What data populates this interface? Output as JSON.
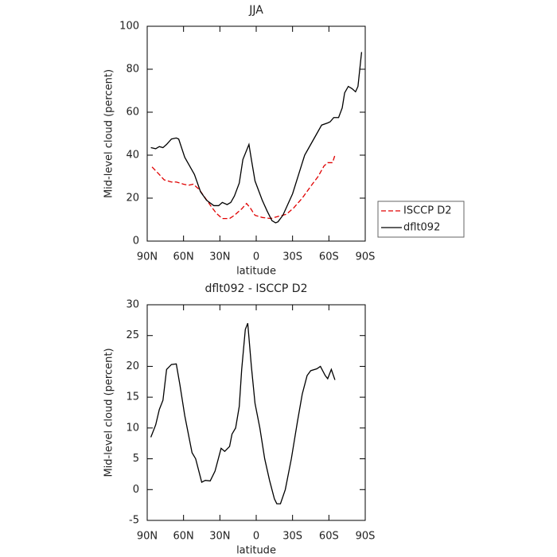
{
  "chart_data": [
    {
      "type": "line",
      "title": "JJA",
      "ylabel": "Mid-level cloud (percent)",
      "xlabel": "latitude",
      "xlim": [
        90,
        -90
      ],
      "ylim": [
        0,
        100
      ],
      "xticks": [
        {
          "value": 90,
          "label": "90N"
        },
        {
          "value": 60,
          "label": "60N"
        },
        {
          "value": 30,
          "label": "30N"
        },
        0,
        {
          "value": -30,
          "label": "30S"
        },
        {
          "value": -60,
          "label": "60S"
        },
        {
          "value": -90,
          "label": "90S"
        }
      ],
      "yticks": [
        0,
        20,
        40,
        60,
        80,
        100
      ],
      "legend": "right",
      "series": [
        {
          "name": "ISCCP D2",
          "color": "#e00000",
          "style": "dashed",
          "x": [
            86,
            80,
            76,
            70,
            66,
            60,
            56,
            52,
            47,
            42,
            37,
            33,
            28,
            22,
            18,
            12,
            8,
            5,
            1,
            -5,
            -12,
            -18,
            -25,
            -31,
            -38,
            -45,
            -51,
            -56,
            -59,
            -63,
            -65
          ],
          "values": [
            34.5,
            31,
            28.5,
            27.5,
            27.5,
            26.5,
            26,
            26.5,
            24,
            20,
            16,
            13,
            10.5,
            10.5,
            12,
            15,
            17.5,
            15.5,
            12,
            11,
            10.5,
            11.5,
            12.5,
            15.5,
            20,
            25.5,
            30,
            35,
            36.5,
            36.5,
            40
          ]
        },
        {
          "name": "dflt092",
          "color": "#000000",
          "style": "solid",
          "x": [
            87,
            83,
            80,
            77,
            74,
            70,
            66,
            64,
            59,
            54,
            51,
            46,
            41,
            35,
            31,
            28,
            24,
            21,
            18,
            14,
            11,
            6,
            4,
            1,
            -5,
            -9,
            -13,
            -16,
            -18,
            -22,
            -26,
            -30,
            -35,
            -40,
            -45,
            -50,
            -54,
            -59,
            -61,
            -64,
            -68,
            -71,
            -73,
            -76,
            -79,
            -82,
            -84,
            -87
          ],
          "values": [
            43.5,
            43,
            44,
            43.5,
            45,
            47.5,
            48,
            47.5,
            39,
            34,
            31,
            23,
            19,
            16.5,
            16.5,
            18,
            17,
            18,
            21,
            27,
            38,
            45,
            38,
            28,
            19,
            14,
            9.5,
            8.5,
            9,
            12,
            17,
            22,
            31,
            40,
            45,
            50,
            54,
            55,
            55.5,
            57.5,
            57.5,
            62,
            69,
            72,
            71,
            69.5,
            72,
            88
          ]
        }
      ]
    },
    {
      "type": "line",
      "title": "dflt092 - ISCCP D2",
      "ylabel": "Mid-level cloud (percent)",
      "xlabel": "latitude",
      "xlim": [
        90,
        -90
      ],
      "ylim": [
        -5,
        30
      ],
      "xticks": [
        {
          "value": 90,
          "label": "90N"
        },
        {
          "value": 60,
          "label": "60N"
        },
        {
          "value": 30,
          "label": "30N"
        },
        0,
        {
          "value": -30,
          "label": "30S"
        },
        {
          "value": -60,
          "label": "60S"
        },
        {
          "value": -90,
          "label": "90S"
        }
      ],
      "yticks": [
        -5,
        0,
        5,
        10,
        15,
        20,
        25,
        30
      ],
      "series": [
        {
          "color": "#000000",
          "style": "solid",
          "x": [
            87,
            83,
            80,
            77,
            74,
            70,
            66,
            63,
            59,
            53,
            50,
            45,
            42,
            38,
            34,
            29,
            26,
            22,
            20,
            17,
            14,
            12,
            9,
            7,
            4,
            1,
            -3,
            -7,
            -11,
            -13,
            -15,
            -17,
            -20,
            -24,
            -29,
            -34,
            -38,
            -42,
            -45,
            -50,
            -53,
            -57,
            -59,
            -62,
            -65
          ],
          "values": [
            8.5,
            10.5,
            13,
            14.5,
            19.5,
            20.3,
            20.4,
            17,
            12,
            6,
            5,
            1.2,
            1.5,
            1.4,
            3,
            6.7,
            6.2,
            7,
            9,
            10,
            13.5,
            19.5,
            26,
            27,
            20,
            14,
            10,
            5,
            1.5,
            0,
            -1.5,
            -2.3,
            -2.3,
            0,
            5,
            11,
            15.5,
            18.5,
            19.3,
            19.6,
            20,
            18.5,
            18,
            19.5,
            17.8
          ]
        }
      ]
    }
  ]
}
